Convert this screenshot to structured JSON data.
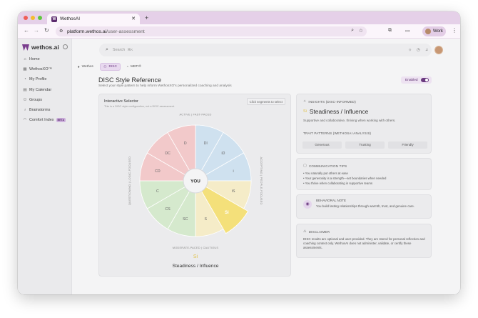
{
  "browser": {
    "tab_title": "WethosAI",
    "tab_favicon": "W",
    "url_domain": "platform.wethos.ai",
    "url_path": "/user-assessment",
    "profile_label": "Work"
  },
  "sidebar": {
    "brand": "wethos.ai",
    "items": [
      {
        "label": "Home",
        "icon": "home-icon",
        "glyph": "⌂"
      },
      {
        "label": "WethosXO™",
        "icon": "grid-icon",
        "glyph": "▦"
      },
      {
        "label": "My Profile",
        "icon": "user-icon",
        "glyph": "◔"
      },
      {
        "label": "My Calendar",
        "icon": "calendar-icon",
        "glyph": "▤"
      },
      {
        "label": "Groups",
        "icon": "groups-icon",
        "glyph": "⚇"
      },
      {
        "label": "Brainstorms",
        "icon": "bulb-icon",
        "glyph": "♁"
      },
      {
        "label": "Comfort Index",
        "icon": "comfort-icon",
        "glyph": "◠",
        "badge": "BETA"
      }
    ]
  },
  "header": {
    "search_placeholder": "Search",
    "search_shortcut": "⌘K"
  },
  "page_tabs": [
    {
      "label": "Wethos",
      "active": false
    },
    {
      "label": "DISC",
      "active": true
    },
    {
      "label": "MBTI®",
      "active": false
    }
  ],
  "page": {
    "title": "DISC Style Reference",
    "subtitle": "Select your style pattern to help inform WethosXO's personalized coaching and analysis",
    "enabled_label": "Enabled",
    "enabled": true
  },
  "selector": {
    "title": "Interactive Selector",
    "subtitle": "This is a DISC style configuration, not a DISC assessment.",
    "hint": "Click segments to select",
    "center": "YOU",
    "axis_top": "ACTIVE | FAST-PACED",
    "axis_bottom": "MODERATE-PACED | CAUTIOUS",
    "axis_left": "QUESTIONING | LOGIC-FOCUSED",
    "axis_right": "ACCEPTING | PEOPLE-FOCUSED",
    "segments": [
      "DI",
      "iD",
      "i",
      "iS",
      "Si",
      "S",
      "SC",
      "CS",
      "C",
      "CD",
      "DC",
      "D"
    ],
    "selected_segment": "Si",
    "selected_code": "Si",
    "selected_name": "Steadiness / Influence",
    "colors": {
      "D": "#f2c9ca",
      "I": "#cfe1ef",
      "S": "#f5ecc8",
      "C": "#d5e9cd",
      "selected": "#f4e07a"
    }
  },
  "insights": {
    "label": "INSIGHTS (DISC-INFORMED)",
    "code": "Si",
    "title": "Steadiness / Influence",
    "description": "Supportive and collaborative, thriving when working with others.",
    "traits_label": "TRAIT PATTERNS (WETHOSAI ANALYSIS)",
    "traits": [
      "Generous",
      "Trusting",
      "Friendly"
    ]
  },
  "communication": {
    "label": "COMMUNICATION TIPS",
    "tips": [
      "• You naturally put others at ease",
      "• Your generosity is a strength—set boundaries when needed",
      "• You thrive when collaborating in supportive teams"
    ]
  },
  "behavioral": {
    "label": "BEHAVIORAL NOTE",
    "text": "You build lasting relationships through warmth, trust, and genuine care."
  },
  "disclaimer": {
    "label": "DISCLAIMER",
    "text": "DISC results are optional and user-provided. They are stored for personal reflection and coaching context only. WethosAI does not administer, validate, or certify these assessments."
  }
}
